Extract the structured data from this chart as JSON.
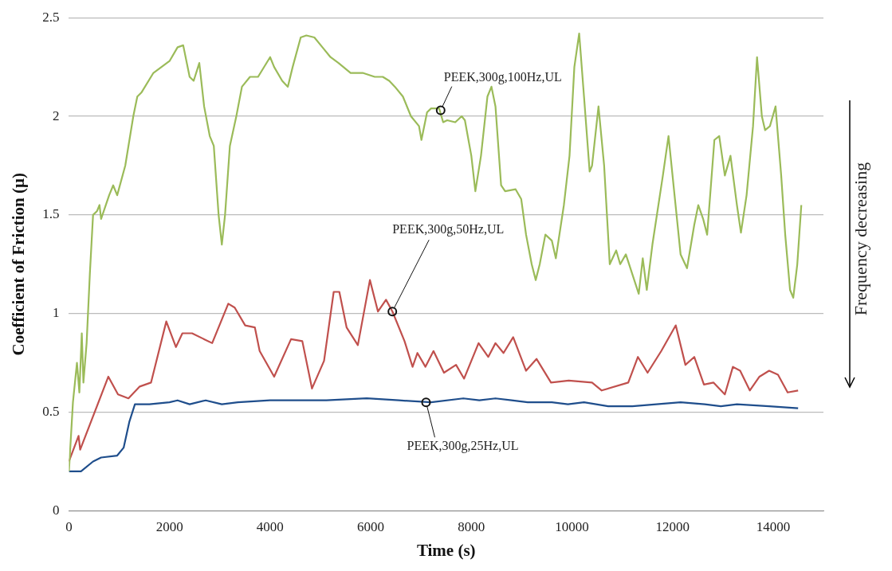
{
  "chart_data": {
    "type": "line",
    "xlabel": "Time (s)",
    "ylabel": "Coefficient of Friction (μ)",
    "xlim": [
      0,
      15000
    ],
    "xticks": [
      0,
      2000,
      4000,
      6000,
      8000,
      10000,
      12000,
      14000
    ],
    "ylim": [
      0,
      2.5
    ],
    "yticks": [
      0,
      0.5,
      1,
      1.5,
      2,
      2.5
    ],
    "grid": "y",
    "legend": false,
    "marker": "none",
    "line_style": "solid",
    "series": [
      {
        "color": "#9bbb59",
        "x": [
          0,
          80,
          160,
          208,
          256,
          288,
          352,
          416,
          480,
          560,
          608,
          640,
          800,
          880,
          960,
          1120,
          1280,
          1360,
          1440,
          1680,
          1840,
          2000,
          2160,
          2272,
          2400,
          2480,
          2592,
          2688,
          2800,
          2880,
          2976,
          3040,
          3104,
          3200,
          3328,
          3440,
          3600,
          3760,
          4000,
          4080,
          4240,
          4352,
          4448,
          4608,
          4720,
          4880,
          5040,
          5200,
          5360,
          5600,
          5840,
          6080,
          6240,
          6368,
          6480,
          6640,
          6800,
          6960,
          7008,
          7120,
          7200,
          7360,
          7440,
          7520,
          7680,
          7808,
          7872,
          8000,
          8080,
          8192,
          8320,
          8400,
          8480,
          8592,
          8672,
          8880,
          8992,
          9088,
          9200,
          9280,
          9360,
          9472,
          9600,
          9680,
          9840,
          9952,
          10048,
          10144,
          10240,
          10352,
          10400,
          10528,
          10640,
          10752,
          10880,
          10960,
          11072,
          11200,
          11328,
          11408,
          11488,
          11600,
          11808,
          11920,
          12000,
          12160,
          12288,
          12432,
          12512,
          12608,
          12688,
          12832,
          12928,
          13040,
          13152,
          13280,
          13360,
          13472,
          13600,
          13680,
          13776,
          13840,
          13936,
          14048,
          14160,
          14240,
          14336,
          14400,
          14480,
          14560
        ],
        "values": [
          0.2,
          0.55,
          0.75,
          0.6,
          0.9,
          0.65,
          0.85,
          1.2,
          1.5,
          1.52,
          1.55,
          1.48,
          1.6,
          1.65,
          1.6,
          1.75,
          2.0,
          2.1,
          2.12,
          2.22,
          2.25,
          2.28,
          2.35,
          2.36,
          2.2,
          2.18,
          2.27,
          2.05,
          1.9,
          1.85,
          1.5,
          1.35,
          1.5,
          1.85,
          2.0,
          2.15,
          2.2,
          2.2,
          2.3,
          2.25,
          2.18,
          2.15,
          2.25,
          2.4,
          2.41,
          2.4,
          2.35,
          2.3,
          2.27,
          2.22,
          2.22,
          2.2,
          2.2,
          2.18,
          2.15,
          2.1,
          2.0,
          1.95,
          1.88,
          2.02,
          2.04,
          2.04,
          1.97,
          1.98,
          1.97,
          2.0,
          1.98,
          1.8,
          1.62,
          1.8,
          2.1,
          2.15,
          2.05,
          1.65,
          1.62,
          1.63,
          1.58,
          1.4,
          1.25,
          1.17,
          1.25,
          1.4,
          1.37,
          1.28,
          1.55,
          1.8,
          2.25,
          2.42,
          2.1,
          1.72,
          1.75,
          2.05,
          1.75,
          1.25,
          1.32,
          1.25,
          1.3,
          1.2,
          1.1,
          1.28,
          1.12,
          1.35,
          1.7,
          1.9,
          1.7,
          1.3,
          1.23,
          1.45,
          1.55,
          1.48,
          1.4,
          1.88,
          1.9,
          1.7,
          1.8,
          1.55,
          1.41,
          1.6,
          1.95,
          2.3,
          2.0,
          1.93,
          1.95,
          2.05,
          1.7,
          1.4,
          1.12,
          1.08,
          1.25,
          1.55
        ]
      },
      {
        "color": "#c0504d",
        "x": [
          0,
          192,
          224,
          784,
          976,
          1184,
          1408,
          1632,
          1936,
          2128,
          2256,
          2448,
          2848,
          3168,
          3296,
          3504,
          3696,
          3792,
          4080,
          4416,
          4640,
          4832,
          5072,
          5264,
          5376,
          5520,
          5744,
          5984,
          6144,
          6304,
          6432,
          6672,
          6832,
          6928,
          7088,
          7248,
          7456,
          7696,
          7856,
          8144,
          8336,
          8480,
          8640,
          8832,
          9088,
          9296,
          9584,
          9936,
          10400,
          10592,
          11120,
          11312,
          11504,
          11776,
          12064,
          12256,
          12432,
          12624,
          12816,
          13040,
          13200,
          13344,
          13536,
          13728,
          13920,
          14096,
          14288,
          14496
        ],
        "values": [
          0.25,
          0.38,
          0.31,
          0.68,
          0.59,
          0.57,
          0.63,
          0.65,
          0.96,
          0.83,
          0.9,
          0.9,
          0.85,
          1.05,
          1.03,
          0.94,
          0.93,
          0.81,
          0.68,
          0.87,
          0.86,
          0.62,
          0.76,
          1.11,
          1.11,
          0.93,
          0.84,
          1.17,
          1.01,
          1.07,
          1.01,
          0.86,
          0.73,
          0.8,
          0.73,
          0.81,
          0.7,
          0.74,
          0.67,
          0.85,
          0.78,
          0.85,
          0.8,
          0.88,
          0.71,
          0.77,
          0.65,
          0.66,
          0.65,
          0.61,
          0.65,
          0.78,
          0.7,
          0.81,
          0.94,
          0.74,
          0.78,
          0.64,
          0.65,
          0.59,
          0.73,
          0.71,
          0.61,
          0.68,
          0.71,
          0.69,
          0.6,
          0.61
        ]
      },
      {
        "color": "#1f4e8c",
        "x": [
          0,
          240,
          480,
          640,
          960,
          1088,
          1200,
          1312,
          1600,
          2000,
          2160,
          2400,
          2720,
          3040,
          3360,
          4000,
          4640,
          5120,
          5920,
          6560,
          7200,
          7840,
          8160,
          8480,
          8800,
          9120,
          9600,
          9920,
          10240,
          10720,
          11200,
          11680,
          12160,
          12640,
          12960,
          13280,
          13920,
          14496
        ],
        "values": [
          0.2,
          0.2,
          0.25,
          0.27,
          0.28,
          0.32,
          0.45,
          0.54,
          0.54,
          0.55,
          0.56,
          0.54,
          0.56,
          0.54,
          0.55,
          0.56,
          0.56,
          0.56,
          0.57,
          0.56,
          0.55,
          0.57,
          0.56,
          0.57,
          0.56,
          0.55,
          0.55,
          0.54,
          0.55,
          0.53,
          0.53,
          0.54,
          0.55,
          0.54,
          0.53,
          0.54,
          0.53,
          0.52
        ]
      }
    ],
    "annotations": [
      {
        "text": "PEEK,300g,100Hz,UL",
        "x": 7390,
        "y": 2.03
      },
      {
        "text": "PEEK,300g,50Hz,UL",
        "x": 6430,
        "y": 1.01
      },
      {
        "text": "PEEK,300g,25Hz,UL",
        "x": 7100,
        "y": 0.55
      },
      "Frequency decreasing"
    ]
  }
}
